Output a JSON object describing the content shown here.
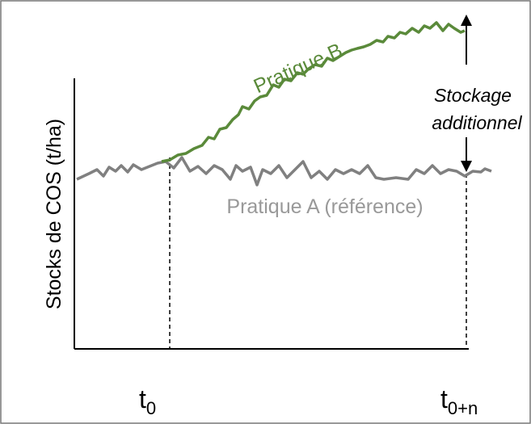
{
  "diagram": {
    "y_axis_label": "Stocks de COS (t/ha)",
    "curves": [
      {
        "label": "Pratique B"
      },
      {
        "label": "Pratique A (référence)"
      }
    ],
    "annotation": {
      "lines": [
        "Stockage",
        "additionnel"
      ]
    },
    "x_labels": [
      {
        "main": "t",
        "sub": "0"
      },
      {
        "main": "t",
        "sub": "0+n"
      }
    ]
  }
}
